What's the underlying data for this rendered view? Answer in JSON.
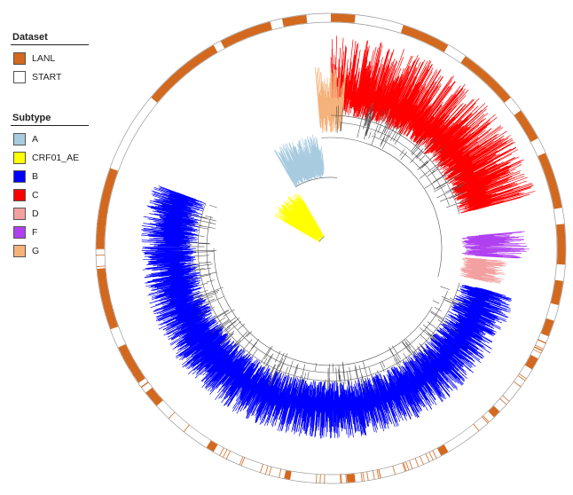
{
  "legends": {
    "dataset": {
      "title": "Dataset",
      "items": [
        {
          "label": "LANL",
          "color": "#d2691e"
        },
        {
          "label": "START",
          "color": "#ffffff"
        }
      ]
    },
    "subtype": {
      "title": "Subtype",
      "items": [
        {
          "label": "A",
          "color": "#a8cbe0"
        },
        {
          "label": "CRF01_AE",
          "color": "#ffff00"
        },
        {
          "label": "B",
          "color": "#0000ff"
        },
        {
          "label": "C",
          "color": "#ff0000"
        },
        {
          "label": "D",
          "color": "#f4a0a0"
        },
        {
          "label": "F",
          "color": "#b040f0"
        },
        {
          "label": "G",
          "color": "#f5b27a"
        }
      ]
    }
  }
}
